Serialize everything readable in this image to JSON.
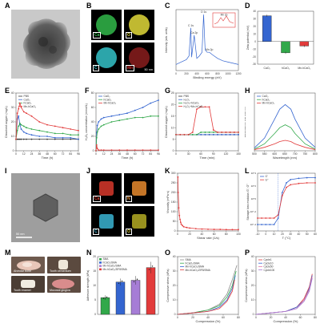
{
  "labels": [
    "A",
    "B",
    "C",
    "D",
    "E",
    "F",
    "G",
    "H",
    "I",
    "J",
    "K",
    "L",
    "M",
    "N",
    "O",
    "P"
  ],
  "colors": {
    "black": "#333333",
    "blue": "#3465d0",
    "red": "#e23b3b",
    "green": "#31a84a",
    "pink": "#e87ba5",
    "lblue": "#7aa9df",
    "purple": "#a67dd6",
    "gray": "#8c8c8c",
    "yellow": "#d9cf2b",
    "teal": "#2bb7b3"
  },
  "panelA": {
    "scale_text": ""
  },
  "panelB": {
    "tiles": [
      {
        "el": "Ca",
        "color": "#31b84a"
      },
      {
        "el": "O",
        "color": "#e2d93a"
      },
      {
        "el": "C",
        "color": "#34c2c8"
      },
      {
        "el": "Mn",
        "color": "#d62d2d"
      }
    ],
    "scale_text": "50 nm"
  },
  "panelI": {
    "scale_text": "50 nm"
  },
  "panelJ": {
    "tiles": [
      {
        "el": "Ca",
        "color": "#d7382c"
      },
      {
        "el": "N",
        "color": "#e68a2e"
      },
      {
        "el": "C",
        "color": "#39b4d2"
      },
      {
        "el": "O",
        "color": "#d9cf2b"
      }
    ]
  },
  "panelM": {
    "photos": [
      {
        "cap": "Alveolar bone"
      },
      {
        "cap": "Tooth cementum"
      },
      {
        "cap": "Tooth enamel"
      },
      {
        "cap": "Mucosal gingiva"
      }
    ]
  },
  "chart_data": [
    {
      "id": "C",
      "type": "line",
      "xlabel": "Binding energy (eV)",
      "ylabel": "Intensity (arb. units)",
      "xlim": [
        0,
        1200
      ],
      "x": [
        0,
        100,
        200,
        250,
        285,
        300,
        350,
        400,
        450,
        500,
        531,
        560,
        600,
        642,
        700,
        800,
        900,
        1000,
        1100,
        1200
      ],
      "values": [
        10,
        14,
        18,
        24,
        70,
        22,
        58,
        20,
        24,
        30,
        92,
        34,
        30,
        30,
        26,
        20,
        16,
        14,
        12,
        10
      ],
      "peaks": [
        {
          "x": 285,
          "text": "C 1s"
        },
        {
          "x": 350,
          "text": "Ca 2p"
        },
        {
          "x": 531,
          "text": "O 1s"
        },
        {
          "x": 642,
          "text": "Mn 2p"
        }
      ],
      "inset_text": "Mn 2p"
    },
    {
      "id": "D",
      "type": "bar",
      "ylabel": "Zeta potential (mV)",
      "ylim": [
        -30,
        40
      ],
      "categories": [
        "CaO₂",
        "hCaO₂",
        "Mn-hCaO₂"
      ],
      "values": [
        34,
        -15,
        -6
      ],
      "errors": [
        1.5,
        1.5,
        1.5
      ],
      "colors": [
        "#3465d0",
        "#31a84a",
        "#e23b3b"
      ]
    },
    {
      "id": "E",
      "type": "line",
      "xlabel": "Time (h)",
      "ylabel": "Dissolved oxygen (mg/L)",
      "ylim": [
        0,
        40
      ],
      "xlim": [
        0,
        96
      ],
      "xticks": [
        0,
        12,
        24,
        36,
        48,
        60,
        72,
        84,
        96
      ],
      "yticks": [
        0,
        10,
        20,
        30,
        40
      ],
      "series": [
        {
          "name": "PBS",
          "color": "#333333",
          "x": [
            0,
            2,
            4,
            6,
            8,
            12,
            16,
            24,
            36,
            48,
            60,
            72,
            84,
            96
          ],
          "values": [
            8,
            8,
            8,
            8,
            8,
            8,
            8,
            8,
            8,
            8,
            8,
            8,
            8,
            8
          ]
        },
        {
          "name": "CaO₂",
          "color": "#3465d0",
          "x": [
            0,
            2,
            4,
            6,
            8,
            12,
            16,
            24,
            36,
            48,
            60,
            72,
            84,
            96
          ],
          "values": [
            8,
            22,
            24,
            18,
            15,
            13,
            12,
            11,
            10,
            10,
            9,
            9,
            9,
            8
          ]
        },
        {
          "name": "hCaO₂",
          "color": "#31a84a",
          "x": [
            0,
            2,
            4,
            6,
            8,
            12,
            16,
            24,
            36,
            48,
            60,
            72,
            84,
            96
          ],
          "values": [
            8,
            14,
            17,
            19,
            18,
            17,
            16,
            15,
            14,
            13,
            12,
            12,
            11,
            11
          ]
        },
        {
          "name": "Mn-hCaO₂",
          "color": "#e23b3b",
          "x": [
            0,
            2,
            4,
            6,
            8,
            12,
            16,
            24,
            36,
            48,
            60,
            72,
            84,
            96
          ],
          "values": [
            8,
            26,
            29,
            33,
            30,
            27,
            26,
            24,
            20,
            18,
            17,
            16,
            15,
            14
          ]
        }
      ]
    },
    {
      "id": "F",
      "type": "line",
      "xlabel": "Time (h)",
      "ylabel": "H₂O₂ concentration (mmol/L)",
      "ylim": [
        0,
        80
      ],
      "xlim": [
        0,
        96
      ],
      "xticks": [
        0,
        12,
        24,
        36,
        48,
        60,
        72,
        84,
        96
      ],
      "yticks": [
        0,
        20,
        40,
        60,
        80
      ],
      "series": [
        {
          "name": "CaO₂",
          "color": "#3465d0",
          "x": [
            0,
            1,
            2,
            4,
            8,
            12,
            24,
            36,
            48,
            60,
            72,
            84,
            96
          ],
          "values": [
            0,
            25,
            35,
            40,
            44,
            46,
            48,
            50,
            52,
            56,
            60,
            66,
            70
          ]
        },
        {
          "name": "hCaO₂",
          "color": "#31a84a",
          "x": [
            0,
            1,
            2,
            4,
            8,
            12,
            24,
            36,
            48,
            60,
            72,
            84,
            96
          ],
          "values": [
            0,
            18,
            26,
            30,
            34,
            36,
            40,
            42,
            44,
            46,
            46,
            48,
            48
          ]
        },
        {
          "name": "Mn-hCaO₂",
          "color": "#e23b3b",
          "x": [
            0,
            1,
            2,
            4,
            8,
            12,
            24,
            36,
            48,
            60,
            72,
            84,
            96
          ],
          "values": [
            0,
            8,
            3,
            1,
            1,
            1,
            1,
            1,
            1,
            1,
            1,
            1,
            1
          ]
        }
      ]
    },
    {
      "id": "G",
      "type": "line",
      "xlabel": "Time (min)",
      "ylabel": "Dissolved oxygen (mg/L)",
      "ylim": [
        0,
        25
      ],
      "xlim": [
        0,
        150
      ],
      "xticks": [
        0,
        30,
        60,
        90,
        120,
        150
      ],
      "yticks": [
        0,
        5,
        10,
        15,
        20,
        25
      ],
      "series": [
        {
          "name": "PBS",
          "color": "#333333",
          "x": [
            0,
            10,
            20,
            30,
            40,
            50,
            60,
            70,
            80,
            90,
            100,
            110,
            120,
            130,
            140,
            150
          ],
          "values": [
            7,
            7,
            7,
            7,
            7,
            7,
            7,
            7,
            7,
            7,
            7,
            7,
            7,
            7,
            7,
            7
          ]
        },
        {
          "name": "H₂O₂",
          "color": "#3465d0",
          "x": [
            0,
            10,
            20,
            30,
            40,
            50,
            60,
            70,
            80,
            90,
            100,
            110,
            120,
            130,
            140,
            150
          ],
          "values": [
            7,
            7,
            7,
            7,
            7,
            7,
            7,
            7,
            7,
            7,
            7,
            7,
            7,
            7,
            7,
            7
          ]
        },
        {
          "name": "H₂O₂+hCaO₂",
          "color": "#31a84a",
          "x": [
            0,
            10,
            20,
            30,
            40,
            50,
            60,
            70,
            80,
            90,
            100,
            110,
            120,
            130,
            140,
            150
          ],
          "values": [
            7,
            7,
            7,
            7,
            7,
            7,
            8,
            8,
            8,
            8,
            8,
            8,
            8,
            8,
            8,
            8
          ]
        },
        {
          "name": "H₂O₂+Mn-hCaO₂",
          "color": "#e23b3b",
          "x": [
            0,
            10,
            20,
            30,
            40,
            50,
            60,
            70,
            80,
            90,
            100,
            110,
            120,
            130,
            140,
            150
          ],
          "values": [
            7,
            7,
            7,
            7,
            8,
            18,
            19,
            19,
            19,
            9,
            8,
            8,
            8,
            8,
            8,
            8
          ]
        }
      ]
    },
    {
      "id": "H",
      "type": "line",
      "xlabel": "Wavelength (nm)",
      "ylabel": "Absorbance OD 652 nm",
      "xlim": [
        500,
        800
      ],
      "ylim": [
        0,
        1
      ],
      "xticks": [
        500,
        550,
        600,
        650,
        700,
        750,
        800
      ],
      "series": [
        {
          "name": "CaO₂",
          "color": "#3465d0",
          "x": [
            500,
            550,
            600,
            625,
            652,
            680,
            700,
            750,
            800
          ],
          "values": [
            0.05,
            0.22,
            0.55,
            0.72,
            0.8,
            0.72,
            0.55,
            0.22,
            0.06
          ]
        },
        {
          "name": "hCaO₂",
          "color": "#31a84a",
          "x": [
            500,
            550,
            600,
            625,
            652,
            680,
            700,
            750,
            800
          ],
          "values": [
            0.03,
            0.12,
            0.3,
            0.4,
            0.45,
            0.4,
            0.3,
            0.12,
            0.03
          ]
        },
        {
          "name": "Mn-hCaO₂",
          "color": "#e23b3b",
          "x": [
            500,
            550,
            600,
            625,
            652,
            680,
            700,
            750,
            800
          ],
          "values": [
            0.02,
            0.06,
            0.12,
            0.16,
            0.18,
            0.16,
            0.12,
            0.06,
            0.02
          ]
        }
      ]
    },
    {
      "id": "K",
      "type": "line",
      "xlabel": "Shear rate (1/s)",
      "ylabel": "Viscosity (mPa·s)",
      "xlim": [
        0,
        100
      ],
      "ylim": [
        0,
        300
      ],
      "xticks": [
        0,
        20,
        40,
        60,
        80,
        100
      ],
      "yticks": [
        0,
        50,
        100,
        150,
        200,
        250,
        300
      ],
      "series": [
        {
          "name": "",
          "color": "#e23b3b",
          "x": [
            0.5,
            1,
            2,
            3,
            4,
            5,
            6,
            8,
            10,
            15,
            20,
            30,
            40,
            50,
            60,
            70,
            80,
            90,
            100
          ],
          "values": [
            280,
            200,
            120,
            80,
            60,
            45,
            35,
            28,
            22,
            18,
            15,
            12,
            10,
            9,
            8,
            8,
            7,
            7,
            7
          ]
        }
      ]
    },
    {
      "id": "L",
      "type": "line",
      "xlabel": "T (°C)",
      "ylabel": "Storage loss modulus G', G''",
      "xlim": [
        -10,
        60
      ],
      "ylim_log": [
        -5,
        4
      ],
      "xticks": [
        -10,
        0,
        10,
        20,
        30,
        40,
        50,
        60
      ],
      "series": [
        {
          "name": "G'",
          "color": "#3465d0",
          "x": [
            -10,
            -5,
            0,
            5,
            10,
            15,
            20,
            25,
            30,
            40,
            50,
            60
          ],
          "values": [
            -4,
            -4,
            -4,
            -4,
            -4,
            -3,
            1,
            2.5,
            3,
            3.2,
            3.3,
            3.3
          ]
        },
        {
          "name": "G''",
          "color": "#e23b3b",
          "x": [
            -10,
            -5,
            0,
            5,
            10,
            15,
            20,
            25,
            30,
            40,
            50,
            60
          ],
          "values": [
            -3,
            -3,
            -3,
            -3,
            -3,
            -2.5,
            0.5,
            1.8,
            2.2,
            2.4,
            2.5,
            2.5
          ]
        }
      ]
    },
    {
      "id": "N",
      "type": "bar",
      "ylabel": "Adhesion strength (kPa)",
      "ylim": [
        0,
        20
      ],
      "yticks": [
        0,
        5,
        10,
        15,
        20
      ],
      "categories": [
        "SMA",
        "hCaO₂/SMA",
        "Mn-hCaO₂/SMA",
        "Mn-hCaO₂/ZIF8/SMA"
      ],
      "values": [
        5.8,
        11.2,
        11.8,
        16.2
      ],
      "errors": [
        0.8,
        1.2,
        1.5,
        2.0
      ],
      "colors": [
        "#31a84a",
        "#3465d0",
        "#a67dd6",
        "#e23b3b"
      ],
      "legend": [
        "SMA",
        "hCaO₂/SMA",
        "Mn-hCaO₂/SMA",
        "Mn-hCaO₂/ZIF8/SMA"
      ]
    },
    {
      "id": "O",
      "type": "line",
      "xlabel": "Compression (%)",
      "ylabel": "Compressive stress (kPa)",
      "xlim": [
        0,
        80
      ],
      "ylim": [
        0,
        40
      ],
      "xticks": [
        0,
        20,
        40,
        60,
        80
      ],
      "yticks": [
        0,
        10,
        20,
        30,
        40
      ],
      "series": [
        {
          "name": "SMA",
          "color": "#8c8c8c",
          "x": [
            0,
            20,
            40,
            55,
            65,
            72,
            78
          ],
          "values": [
            0,
            1,
            3,
            7,
            14,
            24,
            34
          ]
        },
        {
          "name": "hCaO₂/SMA",
          "color": "#31a84a",
          "x": [
            0,
            20,
            40,
            55,
            65,
            72,
            77
          ],
          "values": [
            0,
            1,
            3,
            6,
            12,
            20,
            30
          ]
        },
        {
          "name": "Mn-hCaO₂/SMA",
          "color": "#3465d0",
          "x": [
            0,
            20,
            40,
            55,
            65,
            72,
            76
          ],
          "values": [
            0,
            1,
            2,
            5,
            10,
            18,
            27
          ]
        },
        {
          "name": "Mn-hCaO₂/ZIF8/SMA",
          "color": "#e23b3b",
          "x": [
            0,
            20,
            40,
            55,
            65,
            72,
            75
          ],
          "values": [
            0,
            1,
            2,
            4,
            9,
            16,
            24
          ]
        }
      ]
    },
    {
      "id": "P",
      "type": "line",
      "xlabel": "Compression (%)",
      "ylabel": "Compressive stress (kPa)",
      "xlim": [
        0,
        80
      ],
      "ylim": [
        0,
        40
      ],
      "xticks": [
        0,
        20,
        40,
        60,
        80
      ],
      "yticks": [
        0,
        10,
        20,
        30,
        40
      ],
      "series": [
        {
          "name": "Cycle1",
          "color": "#e23b3b",
          "x": [
            0,
            20,
            40,
            55,
            65,
            72,
            76
          ],
          "values": [
            0,
            1,
            2,
            5,
            11,
            19,
            28
          ]
        },
        {
          "name": "Cycle10",
          "color": "#3465d0",
          "x": [
            0,
            20,
            40,
            55,
            65,
            72,
            76
          ],
          "values": [
            0,
            1,
            2,
            5,
            10,
            18,
            27
          ]
        },
        {
          "name": "Cycle50",
          "color": "#e87ba5",
          "x": [
            0,
            20,
            40,
            55,
            65,
            72,
            76
          ],
          "values": [
            0,
            1,
            2,
            4,
            10,
            17,
            26
          ]
        },
        {
          "name": "Cycle100",
          "color": "#a67dd6",
          "x": [
            0,
            20,
            40,
            55,
            65,
            72,
            76
          ],
          "values": [
            0,
            1,
            2,
            4,
            9,
            16,
            25
          ]
        }
      ]
    }
  ]
}
